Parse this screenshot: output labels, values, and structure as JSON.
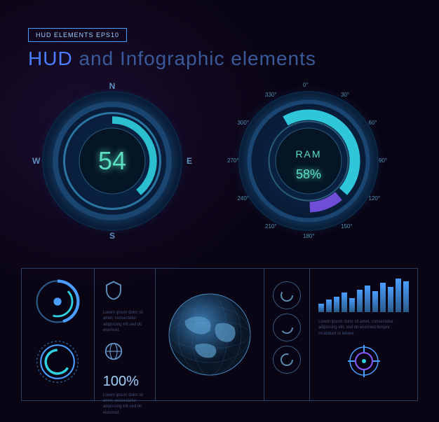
{
  "header": {
    "badge": "HUD ELEMENTS EPS10",
    "title": "HUD and Infographic elements",
    "title_color_1": "#4a7eff",
    "title_color_2": "#3a5a9a"
  },
  "dial_left": {
    "value": "54",
    "value_color": "#5ae0c0",
    "compass": {
      "n": "N",
      "e": "E",
      "s": "S",
      "w": "W"
    },
    "ring_colors": {
      "outer": "#0a2540",
      "mid": "#1a4570",
      "inner": "#2a75a0",
      "accent": "#30d0e0"
    },
    "glow": "#1050a0"
  },
  "dial_right": {
    "label": "RAM",
    "percent": "58%",
    "value_color": "#5ae0c0",
    "degrees": [
      "0°",
      "30°",
      "60°",
      "90°",
      "120°",
      "150°",
      "180°",
      "210°",
      "240°",
      "270°",
      "300°",
      "330°"
    ],
    "ring_colors": {
      "outer": "#0a2540",
      "mid": "#1a4570",
      "inner": "#2a75a0",
      "accent": "#30d0e0"
    },
    "glow": "#1050a0"
  },
  "bottom": {
    "border_color": "#2a4060",
    "col2": {
      "percent_label": "100%",
      "lorem": "Lorem ipsum dolor sit amet, consectetur adipiscing elit sed do eiusmod."
    },
    "col4_circles": [
      "",
      "",
      ""
    ],
    "col5": {
      "bars": [
        12,
        18,
        22,
        28,
        20,
        32,
        38,
        30,
        42,
        36,
        48,
        44
      ],
      "bar_color": "#4a9eff",
      "lorem": "Lorem ipsum dolor sit amet, consectetur adipiscing elit, sed do eiusmod tempor incididunt ut labore."
    },
    "ring_colors": {
      "a": "#4a9eff",
      "b": "#30d0e0",
      "c": "#2a5a8a"
    }
  },
  "colors": {
    "bg_dark": "#050a15",
    "text_dim": "#405070",
    "text_mid": "#6090c0",
    "text_bright": "#a0d0ff",
    "cyan": "#30d0e0",
    "teal": "#5ae0c0"
  }
}
